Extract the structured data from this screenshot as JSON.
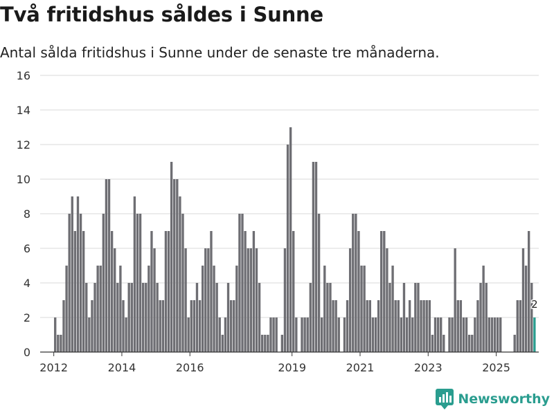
{
  "header": {
    "title": "Två fritidshus såldes i Sunne",
    "subtitle": "Antal sålda fritidshus i Sunne under de senaste tre månaderna."
  },
  "brand": {
    "name": "Newsworthy",
    "icon": "newsworthy-logo-icon"
  },
  "colors": {
    "bar": "#6e6e73",
    "highlight": "#2a9d8f",
    "grid": "#d9d9d9",
    "axis": "#333333"
  },
  "chart_data": {
    "type": "bar",
    "title": "Två fritidshus såldes i Sunne",
    "subtitle": "Antal sålda fritidshus i Sunne under de senaste tre månaderna.",
    "ylim": [
      0,
      16
    ],
    "yticks": [
      0,
      2,
      4,
      6,
      8,
      10,
      12,
      14,
      16
    ],
    "xlim": [
      2011.6,
      2026.25
    ],
    "xticks": [
      2012,
      2014,
      2016,
      2019,
      2021,
      2023,
      2025
    ],
    "grid": true,
    "bar_frequency": "monthly (rolling three-month totals)",
    "start": "2012-01",
    "values": [
      2,
      1,
      1,
      3,
      5,
      8,
      9,
      7,
      9,
      8,
      7,
      4,
      2,
      3,
      4,
      5,
      5,
      8,
      10,
      10,
      7,
      6,
      4,
      5,
      3,
      2,
      4,
      4,
      9,
      8,
      8,
      4,
      4,
      5,
      7,
      6,
      4,
      3,
      3,
      7,
      7,
      11,
      10,
      10,
      9,
      8,
      6,
      2,
      3,
      3,
      4,
      3,
      5,
      6,
      6,
      7,
      5,
      4,
      2,
      1,
      2,
      4,
      3,
      3,
      5,
      8,
      8,
      7,
      6,
      6,
      7,
      6,
      4,
      1,
      1,
      1,
      2,
      2,
      2,
      0,
      1,
      6,
      12,
      13,
      7,
      2,
      0,
      2,
      2,
      2,
      4,
      11,
      11,
      8,
      2,
      5,
      4,
      4,
      3,
      3,
      2,
      0,
      2,
      3,
      6,
      8,
      8,
      7,
      5,
      5,
      3,
      3,
      2,
      2,
      3,
      7,
      7,
      6,
      4,
      5,
      3,
      3,
      2,
      4,
      2,
      3,
      2,
      4,
      4,
      3,
      3,
      3,
      3,
      1,
      2,
      2,
      2,
      1,
      0,
      2,
      2,
      6,
      3,
      3,
      2,
      2,
      1,
      1,
      2,
      3,
      4,
      5,
      4,
      2,
      2,
      2,
      2,
      2,
      0,
      0,
      0,
      0,
      1,
      3,
      3,
      6,
      5,
      7,
      4,
      2
    ],
    "highlight_last": true,
    "last_value_label": "2"
  }
}
